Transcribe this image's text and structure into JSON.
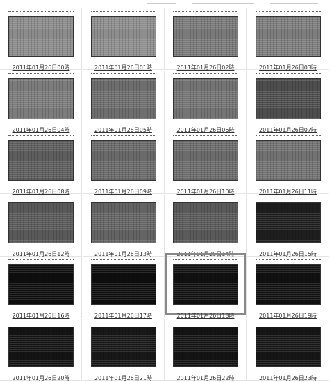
{
  "thumbnails": [
    {
      "caption": "2011年01月26日00時",
      "color": "#8c8c8c"
    },
    {
      "caption": "2011年01月26日01時",
      "color": "#8e8e8e"
    },
    {
      "caption": "2011年01月26日02時",
      "color": "#7a7a7a"
    },
    {
      "caption": "2011年01月26日03時",
      "color": "#7e7e7e"
    },
    {
      "caption": "2011年01月26日04時",
      "color": "#7c7c7c"
    },
    {
      "caption": "2011年01月26日05時",
      "color": "#6e6e6e"
    },
    {
      "caption": "2011年01月26日06時",
      "color": "#747474"
    },
    {
      "caption": "2011年01月26日07時",
      "color": "#4e4e4e"
    },
    {
      "caption": "2011年01月26日08時",
      "color": "#5e5e5e"
    },
    {
      "caption": "2011年01月26日09時",
      "color": "#6a6a6a"
    },
    {
      "caption": "2011年01月26日10時",
      "color": "#6c6c6c"
    },
    {
      "caption": "2011年01月26日11時",
      "color": "#727272"
    },
    {
      "caption": "2011年01月26日12時",
      "color": "#5a5a5a"
    },
    {
      "caption": "2011年01月26日13時",
      "color": "#646464"
    },
    {
      "caption": "2011年01月26日14時",
      "color": "#5a5a5a"
    },
    {
      "caption": "2011年01月26日15時",
      "color": "#1e1e1e"
    },
    {
      "caption": "2011年01月26日16時",
      "color": "#0e0e0e"
    },
    {
      "caption": "2011年01月26日17時",
      "color": "#0e0e0e"
    },
    {
      "caption": "2011年01月26日18時",
      "color": "#111111",
      "selected": true
    },
    {
      "caption": "2011年01月26日19時",
      "color": "#111111"
    },
    {
      "caption": "2011年01月26日20時",
      "color": "#141414"
    },
    {
      "caption": "2011年01月26日21時",
      "color": "#181818"
    },
    {
      "caption": "2011年01月26日22時",
      "color": "#141414"
    },
    {
      "caption": "2011年01月26日23時",
      "color": "#161616"
    }
  ]
}
